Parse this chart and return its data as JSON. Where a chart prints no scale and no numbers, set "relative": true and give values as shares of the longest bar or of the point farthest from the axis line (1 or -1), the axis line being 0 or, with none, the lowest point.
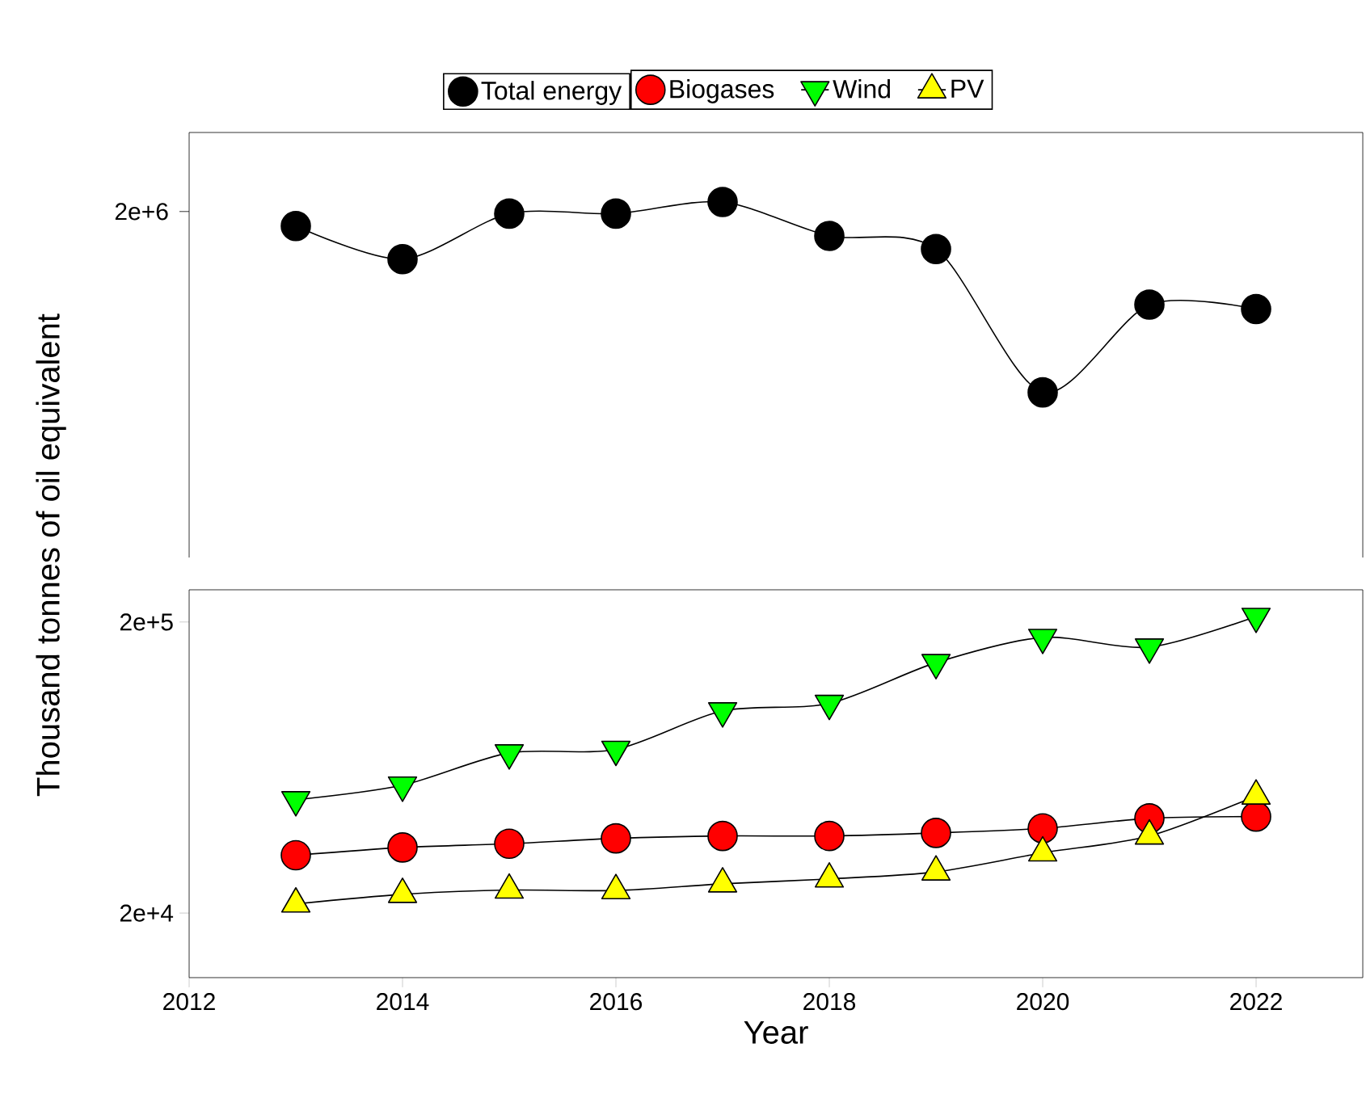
{
  "chart_data": [
    {
      "type": "line",
      "x": [
        2013,
        2014,
        2015,
        2016,
        2017,
        2018,
        2019,
        2020,
        2021,
        2022
      ],
      "series": [
        {
          "name": "Total energy",
          "color": "#000000",
          "marker": "circle",
          "values": [
            0.874,
            0.7,
            0.939,
            0.939,
            1,
            0.822,
            0.753,
            0,
            0.461,
            0.438
          ]
        }
      ],
      "xlim": [
        2012,
        2023
      ],
      "relative": true,
      "annotations": [
        "2e+6"
      ],
      "legend": "top"
    },
    {
      "type": "line",
      "x": [
        2013,
        2014,
        2015,
        2016,
        2017,
        2018,
        2019,
        2020,
        2021,
        2022
      ],
      "series": [
        {
          "name": "Biogases",
          "color": "#ff0000",
          "marker": "circle",
          "values": [
            31600,
            33600,
            34600,
            36100,
            36800,
            36800,
            37700,
            39100,
            42300,
            42900
          ]
        },
        {
          "name": "Wind",
          "color": "#00ff00",
          "marker": "triangle-down",
          "values": [
            49000,
            55000,
            71000,
            73000,
            99000,
            105000,
            145000,
            177000,
            164000,
            209000
          ]
        },
        {
          "name": "PV",
          "color": "#ffff00",
          "marker": "triangle",
          "values": [
            21500,
            23200,
            24000,
            23900,
            25200,
            26200,
            27700,
            32200,
            36800,
            50500
          ]
        }
      ],
      "xlim": [
        2012,
        2023
      ],
      "ylim": [
        12000,
        258000
      ],
      "xticks": [
        2012,
        2014,
        2016,
        2018,
        2020,
        2022
      ],
      "yticks": [
        {
          "value": 200000,
          "label": "2e+5"
        },
        {
          "value": 20000,
          "label": "2e+4"
        }
      ],
      "log": true,
      "legend": "top",
      "xlabel": "Year",
      "ylabel": "Thousand tonnes of oil equivalent"
    }
  ]
}
